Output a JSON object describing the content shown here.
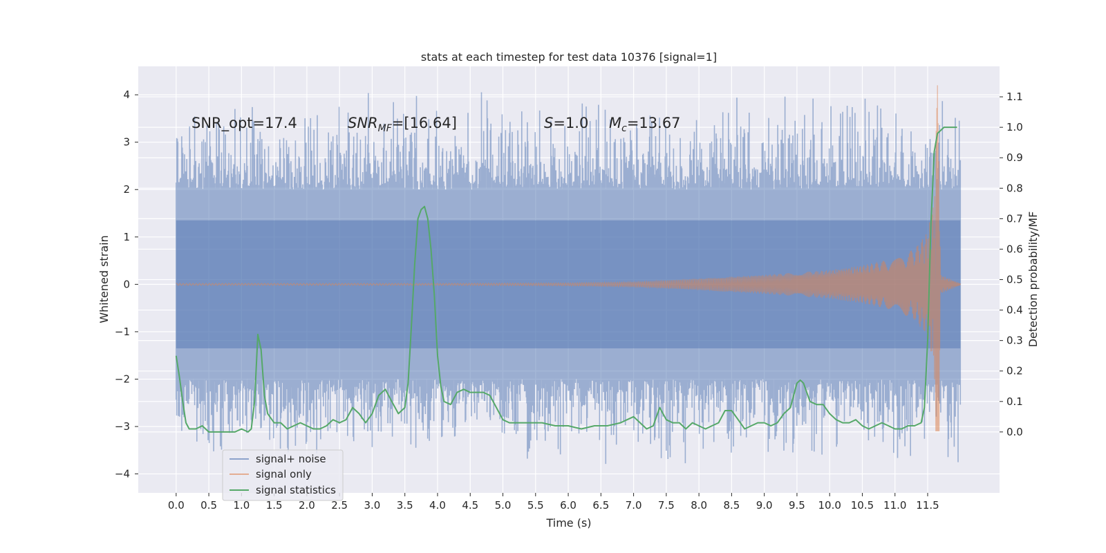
{
  "chart_data": {
    "type": "line",
    "title": "stats at each timestep for test data 10376 [signal=1]",
    "xlabel": "Time (s)",
    "ylabel_left": "Whitened strain",
    "ylabel_right": "Detection probability/MF",
    "xlim": [
      -0.58,
      12.6
    ],
    "ylim_left": [
      -4.4,
      4.6
    ],
    "ylim_right": [
      -0.2,
      1.2
    ],
    "x_ticks": [
      "0.0",
      "0.5",
      "1.0",
      "1.5",
      "2.0",
      "2.5",
      "3.0",
      "3.5",
      "4.0",
      "4.5",
      "5.0",
      "5.5",
      "6.0",
      "6.5",
      "7.0",
      "7.5",
      "8.0",
      "8.5",
      "9.0",
      "9.5",
      "10.0",
      "10.5",
      "11.0",
      "11.5"
    ],
    "y_left_ticks": [
      "4",
      "3",
      "2",
      "1",
      "0",
      "−1",
      "−2",
      "−3",
      "−4"
    ],
    "y_right_ticks": [
      "1.1",
      "1.0",
      "0.9",
      "0.8",
      "0.7",
      "0.6",
      "0.5",
      "0.4",
      "0.3",
      "0.2",
      "0.1",
      "0.0"
    ],
    "grid": true,
    "legend_position": "lower-left",
    "annotations": {
      "snr_opt": "SNR_opt=17.4",
      "snr_mf_base": "SNR",
      "snr_mf_sub": "MF",
      "snr_mf_value": "=[16.64]",
      "s_sym": "S",
      "s_value": "=1.0",
      "mc_sym": "M",
      "mc_sub": "c",
      "mc_value": "=13.67"
    },
    "series": [
      {
        "name": "signal+ noise",
        "axis": "left",
        "color": "#4c72b0",
        "x_range": [
          0.0,
          12.0
        ],
        "envelope_upper_range": [
          2.0,
          4.1
        ],
        "envelope_lower_range": [
          -2.0,
          -3.9
        ],
        "min": -3.9,
        "max": 4.1
      },
      {
        "name": "signal only",
        "axis": "left",
        "color": "#dd8452",
        "x": [
          0.0,
          2.0,
          4.0,
          6.0,
          7.0,
          8.0,
          9.0,
          10.0,
          10.5,
          11.0,
          11.3,
          11.5,
          11.6,
          11.65,
          11.7,
          12.0
        ],
        "amplitude": [
          0.02,
          0.02,
          0.02,
          0.03,
          0.05,
          0.12,
          0.2,
          0.3,
          0.4,
          0.55,
          0.75,
          1.1,
          1.8,
          4.2,
          0.2,
          0.02
        ]
      },
      {
        "name": "signal statistics",
        "axis": "right",
        "color": "#55a868",
        "x": [
          0.0,
          0.05,
          0.1,
          0.15,
          0.2,
          0.3,
          0.4,
          0.5,
          0.6,
          0.7,
          0.8,
          0.9,
          1.0,
          1.1,
          1.15,
          1.2,
          1.25,
          1.3,
          1.35,
          1.4,
          1.5,
          1.6,
          1.7,
          1.8,
          1.9,
          2.0,
          2.1,
          2.2,
          2.3,
          2.4,
          2.5,
          2.6,
          2.7,
          2.8,
          2.9,
          3.0,
          3.1,
          3.2,
          3.3,
          3.4,
          3.5,
          3.55,
          3.6,
          3.65,
          3.7,
          3.75,
          3.8,
          3.85,
          3.9,
          3.95,
          4.0,
          4.05,
          4.1,
          4.2,
          4.3,
          4.4,
          4.5,
          4.6,
          4.7,
          4.8,
          4.9,
          5.0,
          5.1,
          5.2,
          5.4,
          5.6,
          5.8,
          6.0,
          6.2,
          6.4,
          6.6,
          6.8,
          6.9,
          7.0,
          7.1,
          7.2,
          7.3,
          7.4,
          7.5,
          7.6,
          7.7,
          7.8,
          7.9,
          8.0,
          8.1,
          8.2,
          8.3,
          8.4,
          8.5,
          8.6,
          8.7,
          8.8,
          8.9,
          9.0,
          9.1,
          9.2,
          9.3,
          9.4,
          9.5,
          9.55,
          9.6,
          9.7,
          9.8,
          9.9,
          10.0,
          10.1,
          10.2,
          10.3,
          10.4,
          10.5,
          10.6,
          10.7,
          10.8,
          10.9,
          11.0,
          11.1,
          11.2,
          11.3,
          11.4,
          11.45,
          11.5,
          11.55,
          11.6,
          11.65,
          11.7,
          11.75,
          11.8,
          11.85,
          11.9,
          11.95
        ],
        "y": [
          0.25,
          0.18,
          0.1,
          0.03,
          0.01,
          0.01,
          0.02,
          0.0,
          0.0,
          0.0,
          0.0,
          0.0,
          0.01,
          0.0,
          0.01,
          0.1,
          0.32,
          0.27,
          0.12,
          0.06,
          0.03,
          0.03,
          0.01,
          0.02,
          0.03,
          0.02,
          0.01,
          0.01,
          0.02,
          0.04,
          0.03,
          0.04,
          0.08,
          0.06,
          0.03,
          0.06,
          0.12,
          0.14,
          0.1,
          0.06,
          0.08,
          0.16,
          0.35,
          0.55,
          0.7,
          0.73,
          0.74,
          0.7,
          0.6,
          0.45,
          0.25,
          0.15,
          0.1,
          0.09,
          0.13,
          0.14,
          0.13,
          0.13,
          0.13,
          0.12,
          0.08,
          0.04,
          0.03,
          0.03,
          0.03,
          0.03,
          0.02,
          0.02,
          0.01,
          0.02,
          0.02,
          0.03,
          0.04,
          0.05,
          0.03,
          0.01,
          0.02,
          0.08,
          0.04,
          0.03,
          0.03,
          0.01,
          0.03,
          0.02,
          0.01,
          0.02,
          0.03,
          0.07,
          0.07,
          0.04,
          0.01,
          0.02,
          0.03,
          0.03,
          0.02,
          0.03,
          0.06,
          0.08,
          0.16,
          0.17,
          0.16,
          0.1,
          0.09,
          0.09,
          0.06,
          0.04,
          0.03,
          0.03,
          0.04,
          0.02,
          0.01,
          0.02,
          0.03,
          0.02,
          0.01,
          0.01,
          0.02,
          0.02,
          0.03,
          0.08,
          0.3,
          0.68,
          0.92,
          0.98,
          0.99,
          1.0,
          1.0,
          1.0,
          1.0,
          1.0
        ]
      }
    ]
  }
}
